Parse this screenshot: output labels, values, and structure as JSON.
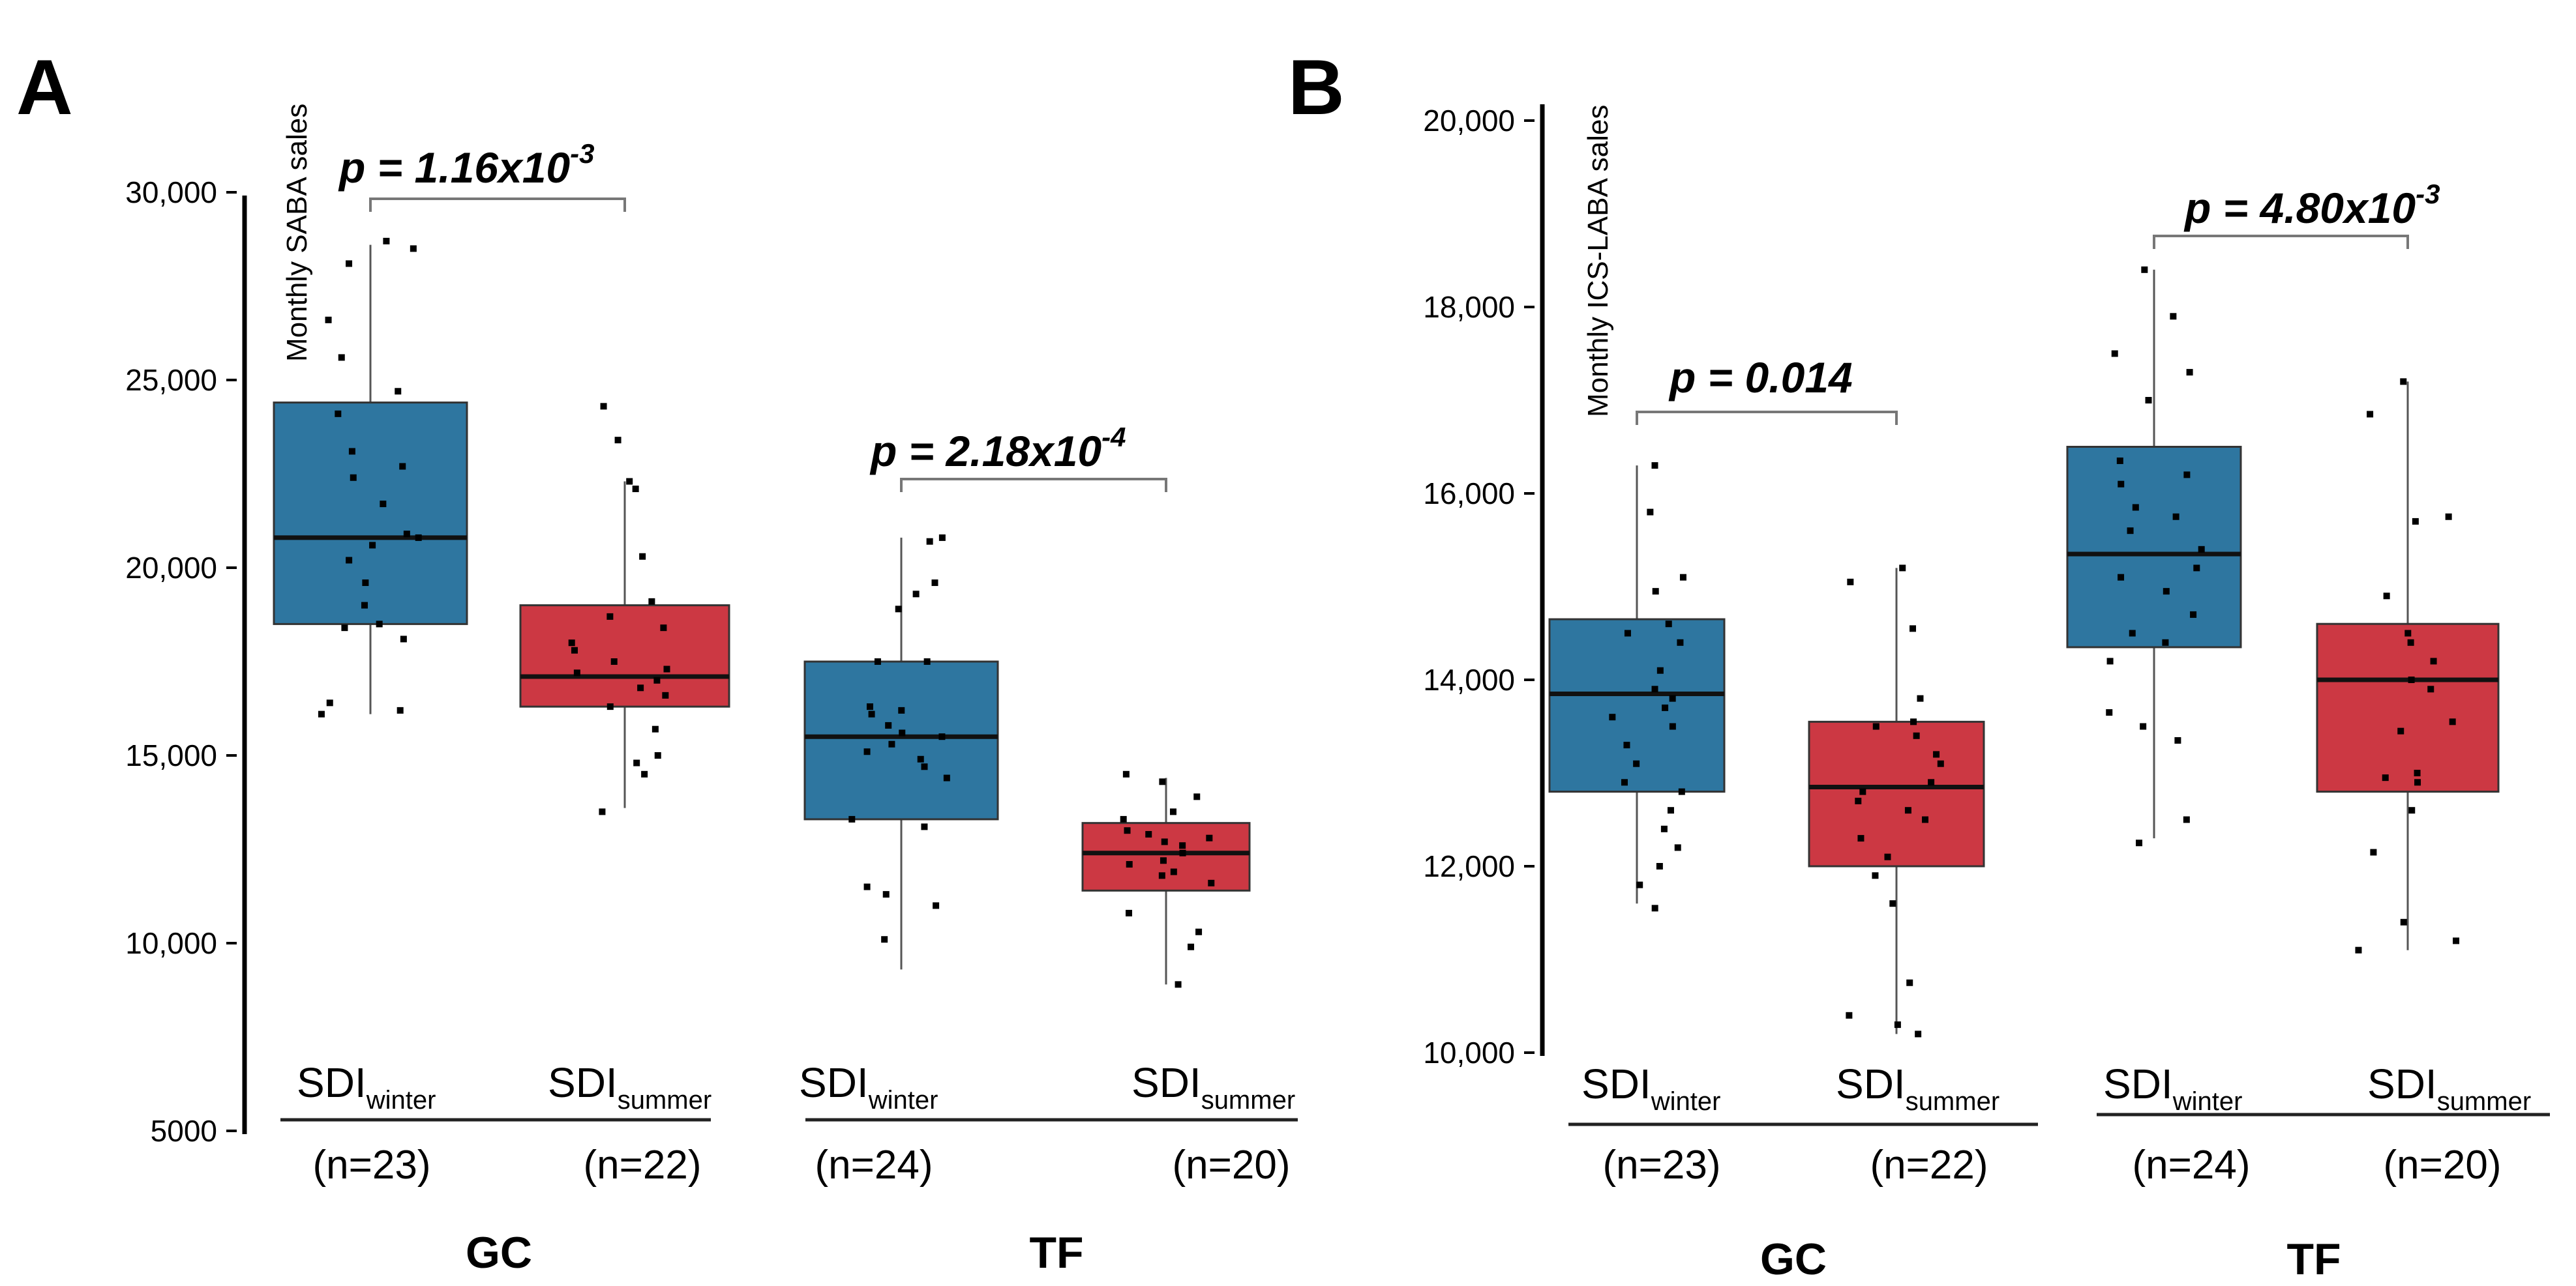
{
  "chart_data": [
    {
      "panel": "A",
      "type": "box",
      "title": "",
      "xlabel": "",
      "ylabel": "Monthly SABA sales",
      "ylim": [
        5000,
        31000
      ],
      "y_ticks": [
        {
          "value": 30000,
          "label": "30,000"
        },
        {
          "value": 25000,
          "label": "25,000"
        },
        {
          "value": 20000,
          "label": "20,000"
        },
        {
          "value": 15000,
          "label": "15,000"
        },
        {
          "value": 10000,
          "label": "10,000"
        },
        {
          "value": 5000,
          "label": "5000"
        }
      ],
      "groups": [
        {
          "name": "GC",
          "boxes": [
            0,
            1
          ]
        },
        {
          "name": "TF",
          "boxes": [
            2,
            3
          ]
        }
      ],
      "boxes": [
        {
          "base": "SDI",
          "sub": "winter",
          "n": "(n=23)",
          "color": "#2e76a0",
          "min": 16100,
          "q1": 18500,
          "median": 20800,
          "q3": 24400,
          "max": 28600,
          "points": [
            28700,
            28500,
            28100,
            26600,
            25600,
            24700,
            24100,
            23100,
            22700,
            22400,
            21700,
            20900,
            20800,
            20600,
            20200,
            19600,
            19000,
            18500,
            18400,
            18100,
            16400,
            16200,
            16100
          ]
        },
        {
          "base": "SDI",
          "sub": "summer",
          "n": "(n=22)",
          "color": "#cc3843",
          "min": 13600,
          "q1": 16300,
          "median": 17100,
          "q3": 19000,
          "max": 22300,
          "points": [
            24300,
            23400,
            22300,
            22100,
            20300,
            19100,
            18700,
            18400,
            18000,
            17800,
            17500,
            17300,
            17200,
            17000,
            16800,
            16600,
            16300,
            15700,
            15000,
            14800,
            14500,
            13500
          ]
        },
        {
          "base": "SDI",
          "sub": "winter",
          "n": "(n=24)",
          "color": "#2e76a0",
          "min": 9300,
          "q1": 13300,
          "median": 15500,
          "q3": 17500,
          "max": 20800,
          "points": [
            20800,
            20700,
            19600,
            19300,
            18900,
            17500,
            17500,
            16300,
            16200,
            16100,
            15800,
            15600,
            15500,
            15300,
            15100,
            14900,
            14700,
            14400,
            13300,
            13100,
            11500,
            11300,
            11000,
            10100
          ]
        },
        {
          "base": "SDI",
          "sub": "summer",
          "n": "(n=20)",
          "color": "#cc3843",
          "min": 8900,
          "q1": 11400,
          "median": 12400,
          "q3": 13200,
          "max": 14400,
          "points": [
            14500,
            14300,
            13900,
            13500,
            13300,
            13000,
            12900,
            12800,
            12700,
            12600,
            12400,
            12200,
            12100,
            11900,
            11800,
            11600,
            10800,
            10300,
            9900,
            8900
          ]
        }
      ],
      "comparisons": [
        {
          "between": [
            0,
            1
          ],
          "prefix": "p = 1.16x10",
          "exponent": "-3"
        },
        {
          "between": [
            2,
            3
          ],
          "prefix": "p = 2.18x10",
          "exponent": "-4"
        }
      ]
    },
    {
      "panel": "B",
      "type": "box",
      "title": "",
      "xlabel": "",
      "ylabel": "Monthly ICS-LABA sales",
      "ylim": [
        10000,
        20000
      ],
      "y_ticks": [
        {
          "value": 20000,
          "label": "20,000"
        },
        {
          "value": 18000,
          "label": "18,000"
        },
        {
          "value": 16000,
          "label": "16,000"
        },
        {
          "value": 14000,
          "label": "14,000"
        },
        {
          "value": 12000,
          "label": "12,000"
        },
        {
          "value": 10000,
          "label": "10,000"
        }
      ],
      "groups": [
        {
          "name": "GC",
          "boxes": [
            0,
            1
          ]
        },
        {
          "name": "TF",
          "boxes": [
            2,
            3
          ]
        }
      ],
      "boxes": [
        {
          "base": "SDI",
          "sub": "winter",
          "n": "(n=23)",
          "color": "#2e76a0",
          "min": 11600,
          "q1": 12800,
          "median": 13850,
          "q3": 14650,
          "max": 16300,
          "points": [
            16300,
            15800,
            15100,
            14950,
            14600,
            14500,
            14400,
            14100,
            13900,
            13800,
            13700,
            13600,
            13500,
            13300,
            13100,
            12900,
            12800,
            12600,
            12400,
            12200,
            12000,
            11800,
            11550
          ]
        },
        {
          "base": "SDI",
          "sub": "summer",
          "n": "(n=22)",
          "color": "#cc3843",
          "min": 10200,
          "q1": 12000,
          "median": 12850,
          "q3": 13550,
          "max": 15200,
          "points": [
            15200,
            15050,
            14550,
            13800,
            13550,
            13500,
            13400,
            13200,
            13100,
            12900,
            12800,
            12700,
            12600,
            12500,
            12300,
            12100,
            11900,
            11600,
            10750,
            10400,
            10300,
            10200
          ]
        },
        {
          "base": "SDI",
          "sub": "winter",
          "n": "(n=24)",
          "color": "#2e76a0",
          "min": 12300,
          "q1": 14350,
          "median": 15350,
          "q3": 16500,
          "max": 18400,
          "points": [
            18400,
            17900,
            17500,
            17300,
            17000,
            16350,
            16200,
            16100,
            15850,
            15750,
            15600,
            15400,
            15200,
            15100,
            14950,
            14700,
            14500,
            14400,
            14200,
            13650,
            13500,
            13350,
            12500,
            12250
          ]
        },
        {
          "base": "SDI",
          "sub": "summer",
          "n": "(n=20)",
          "color": "#cc3843",
          "min": 11100,
          "q1": 12800,
          "median": 14000,
          "q3": 14600,
          "max": 17200,
          "points": [
            17200,
            16850,
            15750,
            15700,
            14900,
            14500,
            14400,
            14200,
            14000,
            13900,
            13550,
            13450,
            13000,
            12950,
            12900,
            12600,
            12150,
            11400,
            11200,
            11100
          ]
        }
      ],
      "comparisons": [
        {
          "between": [
            0,
            1
          ],
          "prefix": "p = 0.014",
          "exponent": ""
        },
        {
          "between": [
            2,
            3
          ],
          "prefix": "p = 4.80x10",
          "exponent": "-3"
        }
      ]
    }
  ]
}
